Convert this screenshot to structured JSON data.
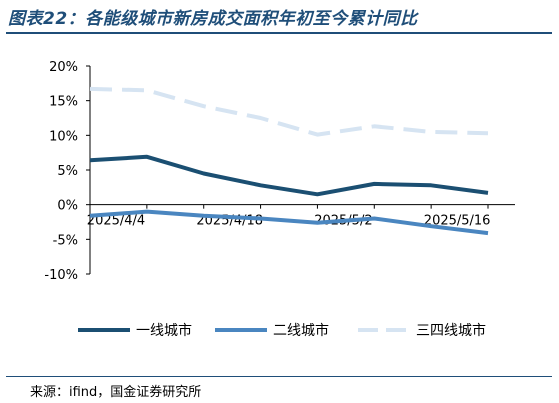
{
  "title": "图表22：各能级城市新房成交面积年初至今累计同比",
  "source": "来源：ifind，国金证券研究所",
  "chart_data": {
    "type": "line",
    "x": [
      "2025/4/4",
      "2025/4/11",
      "2025/4/18",
      "2025/4/25",
      "2025/5/2",
      "2025/5/9",
      "2025/5/16",
      "2025/5/23"
    ],
    "x_tick_labels": [
      "2025/4/4",
      "2025/4/18",
      "2025/5/2",
      "2025/5/16"
    ],
    "y_tick_labels": [
      "20%",
      "15%",
      "10%",
      "5%",
      "0%",
      "-5%",
      "-10%"
    ],
    "ylim": [
      -10,
      20
    ],
    "series": [
      {
        "name": "一线城市",
        "values": [
          6.4,
          6.9,
          4.5,
          2.8,
          1.5,
          3.0,
          2.8,
          1.7
        ],
        "color": "#1b4f72",
        "style": "solid"
      },
      {
        "name": "二线城市",
        "values": [
          -1.6,
          -1.0,
          -1.6,
          -2.0,
          -2.6,
          -2.0,
          -3.1,
          -4.1
        ],
        "color": "#4a86c0",
        "style": "solid"
      },
      {
        "name": "三四线城市",
        "values": [
          16.7,
          16.5,
          14.2,
          12.5,
          10.1,
          11.3,
          10.5,
          10.3
        ],
        "color": "#d6e4f2",
        "style": "dashed"
      }
    ],
    "legend_position": "bottom",
    "grid": false
  }
}
